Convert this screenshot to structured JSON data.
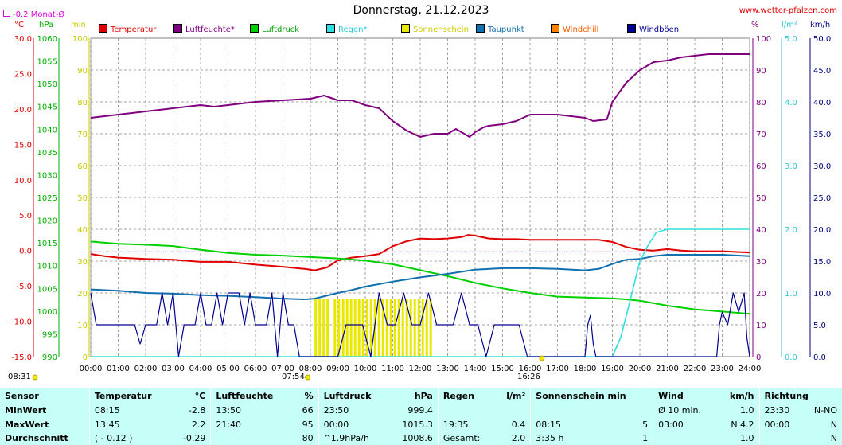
{
  "page": {
    "title": "Donnerstag, 21.12.2023",
    "site": "www.wetter-pfalzen.com",
    "monat_label": "-0.2 Monat-Ø",
    "sunrise": "07:54",
    "sunset": "16:26",
    "page_time": "08:31"
  },
  "units": {
    "left": [
      "°C",
      "hPa",
      "min"
    ],
    "right": [
      "%",
      "l/m²",
      "km/h"
    ]
  },
  "legend": [
    {
      "label": "Temperatur",
      "color": "#e00000"
    },
    {
      "label": "Luftfeuchte*",
      "color": "#800080"
    },
    {
      "label": "Luftdruck",
      "color": "#00d000"
    },
    {
      "label": "Regen*",
      "color": "#30e0e0"
    },
    {
      "label": "Sonnenschein",
      "color": "#e8e800"
    },
    {
      "label": "Taupunkt",
      "color": "#1070b0"
    },
    {
      "label": "Windchill",
      "color": "#ff8000"
    },
    {
      "label": "Windböen",
      "color": "#000090"
    }
  ],
  "chart_data": {
    "type": "line",
    "title": "Donnerstag, 21.12.2023",
    "x_ticks": [
      "00:00",
      "01:00",
      "02:00",
      "03:00",
      "04:00",
      "05:00",
      "06:00",
      "07:00",
      "08:00",
      "09:00",
      "10:00",
      "11:00",
      "12:00",
      "13:00",
      "14:00",
      "15:00",
      "16:00",
      "17:00",
      "18:00",
      "19:00",
      "20:00",
      "21:00",
      "22:00",
      "23:00",
      "24:00"
    ],
    "axes": {
      "temperature": {
        "unit": "°C",
        "range": [
          -15,
          30
        ],
        "ticks": [
          "30.0",
          "25.0",
          "20.0",
          "15.0",
          "10.0",
          "5.0",
          "0.0",
          "-5.0",
          "-10.0",
          "-15.0"
        ]
      },
      "pressure": {
        "unit": "hPa",
        "range": [
          990,
          1060
        ],
        "ticks": [
          "1060",
          "1055",
          "1050",
          "1045",
          "1040",
          "1035",
          "1030",
          "1025",
          "1020",
          "1015",
          "1010",
          "1005",
          "1000",
          "995",
          "990"
        ]
      },
      "sunshine": {
        "unit": "min",
        "range": [
          0,
          100
        ],
        "ticks": [
          "100",
          "90",
          "80",
          "70",
          "60",
          "50",
          "40",
          "30",
          "20",
          "10",
          "0"
        ]
      },
      "humidity": {
        "unit": "%",
        "range": [
          0,
          100
        ],
        "ticks": [
          "100",
          "90",
          "80",
          "70",
          "60",
          "50",
          "40",
          "30",
          "20",
          "10",
          "0"
        ]
      },
      "rain": {
        "unit": "l/m²",
        "range": [
          0,
          5
        ],
        "ticks": [
          "5.0",
          "4.0",
          "3.0",
          "2.0",
          "1.0",
          "0.0"
        ]
      },
      "wind": {
        "unit": "km/h",
        "range": [
          0,
          50
        ],
        "ticks": [
          "50.0",
          "45.0",
          "40.0",
          "35.0",
          "30.0",
          "25.0",
          "20.0",
          "15.0",
          "10.0",
          "5.0",
          "0.0"
        ]
      }
    },
    "monthly_avg_temp": -0.2,
    "series": [
      {
        "name": "Temperatur",
        "axis": "temperature",
        "x": [
          0,
          0.5,
          1,
          2,
          3,
          4,
          5,
          6,
          7,
          7.8,
          8.15,
          8.6,
          9,
          9.5,
          10,
          10.5,
          11,
          11.5,
          12,
          12.5,
          13,
          13.5,
          13.75,
          14,
          14.5,
          15,
          15.5,
          16,
          17,
          18,
          18.5,
          19,
          19.5,
          20,
          20.5,
          21,
          21.5,
          22,
          23,
          24
        ],
        "y": [
          -0.5,
          -0.8,
          -1,
          -1.2,
          -1.3,
          -1.6,
          -1.6,
          -2.0,
          -2.3,
          -2.6,
          -2.8,
          -2.4,
          -1.4,
          -1.0,
          -0.8,
          -0.5,
          0.6,
          1.3,
          1.7,
          1.6,
          1.7,
          1.9,
          2.2,
          2.1,
          1.7,
          1.6,
          1.6,
          1.5,
          1.5,
          1.5,
          1.5,
          1.2,
          0.5,
          0.1,
          0,
          0.2,
          0,
          -0.1,
          -0.1,
          -0.3
        ]
      },
      {
        "name": "Luftfeuchte*",
        "axis": "humidity",
        "x": [
          0,
          0.5,
          1,
          2,
          3,
          4,
          4.5,
          5,
          6,
          7,
          8,
          8.5,
          9,
          9.5,
          10,
          10.5,
          11,
          11.5,
          12,
          12.5,
          13,
          13.3,
          13.8,
          14,
          14.3,
          14.5,
          15,
          15.5,
          16,
          17,
          18,
          18.3,
          18.8,
          19,
          19.5,
          20,
          20.5,
          21,
          21.5,
          22,
          22.5,
          23,
          24
        ],
        "y": [
          75,
          75.5,
          76,
          77,
          78,
          79,
          78.5,
          79,
          80,
          80.5,
          81,
          82,
          80.5,
          80.5,
          79,
          78,
          74,
          71,
          69,
          70,
          70,
          71.5,
          69,
          70.5,
          72,
          72.5,
          73,
          74,
          76,
          76,
          75,
          74,
          74.5,
          80,
          86,
          90,
          92.5,
          93,
          94,
          94.5,
          95,
          95,
          95
        ]
      },
      {
        "name": "Luftdruck",
        "axis": "pressure",
        "x": [
          0,
          1,
          2,
          3,
          4,
          5,
          6,
          7,
          8,
          9,
          10,
          11,
          12,
          13,
          14,
          15,
          16,
          17,
          18,
          19,
          19.5,
          20,
          21,
          22,
          23,
          24
        ],
        "y": [
          1015.3,
          1014.8,
          1014.6,
          1014.3,
          1013.5,
          1012.8,
          1012.4,
          1012.2,
          1011.9,
          1011.6,
          1011.1,
          1010.3,
          1009.0,
          1007.7,
          1006.2,
          1005.0,
          1004.0,
          1003.2,
          1003.0,
          1002.8,
          1002.6,
          1002.3,
          1001.2,
          1000.4,
          999.9,
          999.4
        ]
      },
      {
        "name": "Taupunkt",
        "axis": "temperature",
        "x": [
          0,
          1,
          2,
          3,
          4,
          5,
          6,
          7,
          7.8,
          8.15,
          9,
          9.5,
          10,
          11,
          11.5,
          12,
          13,
          14,
          15,
          16,
          17,
          18,
          18.5,
          19,
          19.5,
          20,
          20.5,
          21,
          21.5,
          22,
          23,
          24
        ],
        "y": [
          -5.5,
          -5.7,
          -6,
          -6.1,
          -6.3,
          -6.4,
          -6.6,
          -6.8,
          -6.9,
          -6.8,
          -6.0,
          -5.6,
          -5.1,
          -4.4,
          -4.1,
          -3.8,
          -3.3,
          -2.7,
          -2.5,
          -2.5,
          -2.6,
          -2.8,
          -2.6,
          -1.9,
          -1.3,
          -1.2,
          -0.8,
          -0.6,
          -0.6,
          -0.6,
          -0.6,
          -0.8
        ]
      },
      {
        "name": "Regen*",
        "axis": "rain",
        "x": [
          0,
          19.0,
          19.3,
          19.6,
          20,
          20.3,
          20.6,
          21,
          21.5,
          22,
          24
        ],
        "y": [
          0,
          0,
          0.3,
          0.8,
          1.5,
          1.75,
          1.95,
          2.0,
          2.0,
          2.0,
          2.0
        ]
      },
      {
        "name": "Windböen",
        "axis": "wind",
        "x": [
          0,
          0.2,
          0.4,
          0.6,
          0.8,
          1.0,
          1.2,
          1.4,
          1.6,
          1.8,
          2.0,
          2.2,
          2.4,
          2.6,
          2.8,
          3.0,
          3.2,
          3.4,
          3.6,
          3.8,
          4.0,
          4.2,
          4.4,
          4.6,
          4.8,
          5.0,
          5.2,
          5.4,
          5.6,
          5.8,
          6.0,
          6.2,
          6.4,
          6.6,
          6.8,
          7.0,
          7.2,
          7.4,
          7.6,
          8,
          9,
          9.3,
          9.6,
          9.9,
          10.2,
          10.5,
          10.8,
          11.1,
          11.4,
          11.7,
          12.0,
          12.3,
          12.6,
          12.9,
          13.2,
          13.5,
          13.8,
          14.1,
          14.4,
          14.7,
          15.0,
          15.3,
          15.6,
          15.9,
          16,
          18,
          18.1,
          18.2,
          18.3,
          18.4,
          22.8,
          22.9,
          23.0,
          23.2,
          23.4,
          23.6,
          23.8,
          23.9,
          24
        ],
        "y": [
          10,
          5,
          5,
          5,
          5,
          5,
          5,
          5,
          5,
          2,
          5,
          5,
          5,
          10,
          5,
          10,
          0,
          5,
          5,
          5,
          10,
          5,
          5,
          10,
          5,
          10,
          10,
          10,
          5,
          10,
          5,
          5,
          5,
          10,
          0,
          10,
          5,
          5,
          0,
          0,
          0,
          5,
          5,
          5,
          0,
          10,
          5,
          5,
          10,
          5,
          5,
          10,
          5,
          5,
          5,
          10,
          5,
          5,
          0,
          5,
          5,
          5,
          5,
          0,
          0,
          0,
          5,
          6.5,
          2,
          0,
          0,
          5,
          7,
          5,
          10,
          7,
          10,
          3,
          0
        ]
      }
    ],
    "sunshine_bars": [
      {
        "from": 8.15,
        "to": 8.7,
        "minutes": 5
      },
      {
        "from": 8.85,
        "to": 9.05,
        "minutes": 5
      },
      {
        "from": 9.15,
        "to": 12.45,
        "minutes": 5
      }
    ]
  },
  "stats": {
    "headers": [
      "Sensor",
      "Temperatur",
      "°C",
      "Luftfeuchte",
      "%",
      "Luftdruck",
      "hPa",
      "Regen",
      "l/m²",
      "Sonnenschein min",
      "Wind",
      "km/h",
      "Richtung"
    ],
    "rows": [
      {
        "label": "MinWert",
        "cells": [
          "08:15",
          "-2.8",
          "13:50",
          "66",
          "23:50",
          "999.4",
          "",
          "",
          "",
          "",
          "Ø 10 min.",
          "1.0",
          "23:30",
          "N-NO"
        ]
      },
      {
        "label": "MaxWert",
        "cells": [
          "13:45",
          "2.2",
          "21:40",
          "95",
          "00:00",
          "1015.3",
          "19:35",
          "0.4",
          "08:15",
          "5",
          "03:00",
          "N 4.2",
          "00:00",
          "N"
        ]
      },
      {
        "label": "Durchschnitt",
        "cells": [
          "( - 0.12 )",
          "-0.29",
          "",
          "80",
          "^1.9hPa/h",
          "1008.6",
          "Gesamt:",
          "2.0",
          "3:35 h",
          "1",
          "",
          "1.0",
          "",
          "N"
        ]
      }
    ]
  }
}
